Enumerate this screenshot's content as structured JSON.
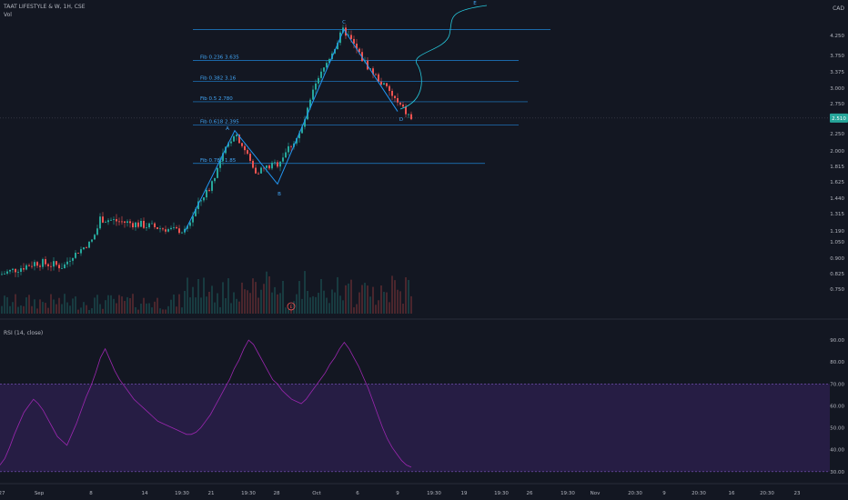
{
  "header": {
    "title": "TAAT LIFESTYLE & W, 1H, CSE",
    "vol_label": "Vol",
    "rsi_label": "RSI (14, close)",
    "currency": "CAD"
  },
  "colors": {
    "background": "#131722",
    "up": "#26a69a",
    "down": "#ef5350",
    "pattern": "#2196f3",
    "fib_text": "#42a5f5",
    "rsi_line": "#9c27b0",
    "rsi_band": "#2a1e4a",
    "axis_text": "#b2b5be",
    "last_price_bg": "#26a69a"
  },
  "chart_data": [
    {
      "type": "candlestick",
      "title": "TAAT LIFESTYLE & W, 1H, CSE",
      "price_ticks": [
        "4.250",
        "3.750",
        "3.375",
        "3.000",
        "2.750",
        "2.250",
        "2.000",
        "1.815",
        "1.625",
        "1.440",
        "1.315",
        "1.190",
        "1.050",
        "0.900",
        "0.825",
        "0.750"
      ],
      "last_price": "2.510",
      "time_ticks": [
        "27",
        "Sep",
        "8",
        "14",
        "19:30",
        "21",
        "19:30",
        "28",
        "Oct",
        "6",
        "9",
        "19:30",
        "19",
        "19:30",
        "26",
        "19:30",
        "Nov",
        "20:30",
        "9",
        "20:30",
        "16",
        "20:30",
        "23"
      ],
      "pattern": {
        "points": [
          {
            "label": "X",
            "price": 1.18
          },
          {
            "label": "A",
            "price": 2.3
          },
          {
            "label": "B",
            "price": 1.6
          },
          {
            "label": "C",
            "price": 4.4
          },
          {
            "label": "D",
            "price": 2.62
          }
        ],
        "visible_labels": [
          "A",
          "B",
          "C",
          "D",
          "E"
        ]
      },
      "fib_levels": [
        {
          "label": "Fib 0.236 3.635",
          "price": 3.635
        },
        {
          "label": "Fib 0.382 3.16",
          "price": 3.16
        },
        {
          "label": "Fib 0.5 2.780",
          "price": 2.78
        },
        {
          "label": "Fib 0.618 2.395",
          "price": 2.395
        },
        {
          "label": "Fib 0.786 1.85",
          "price": 1.85
        }
      ],
      "top_level": 4.4,
      "event_marker": "E"
    },
    {
      "type": "line",
      "title": "RSI (14, close)",
      "ylim": [
        27,
        95
      ],
      "y_ticks": [
        "90.00",
        "80.00",
        "70.00",
        "60.00",
        "50.00",
        "40.00",
        "30.00"
      ],
      "bands": [
        30,
        70
      ],
      "series": [
        {
          "name": "RSI (14, close)",
          "values": [
            33,
            36,
            41,
            47,
            52,
            57,
            60,
            63,
            61,
            58,
            54,
            50,
            46,
            44,
            42,
            47,
            52,
            58,
            64,
            69,
            75,
            82,
            86,
            81,
            76,
            72,
            69,
            66,
            63,
            61,
            59,
            57,
            55,
            53,
            52,
            51,
            50,
            49,
            48,
            47,
            47,
            48,
            50,
            53,
            56,
            60,
            64,
            68,
            72,
            77,
            81,
            86,
            90,
            88,
            84,
            80,
            76,
            72,
            70,
            67,
            65,
            63,
            62,
            61,
            63,
            66,
            69,
            72,
            75,
            79,
            82,
            86,
            89,
            86,
            82,
            78,
            73,
            68,
            62,
            56,
            50,
            45,
            41,
            38,
            35,
            33,
            32
          ]
        }
      ]
    }
  ]
}
